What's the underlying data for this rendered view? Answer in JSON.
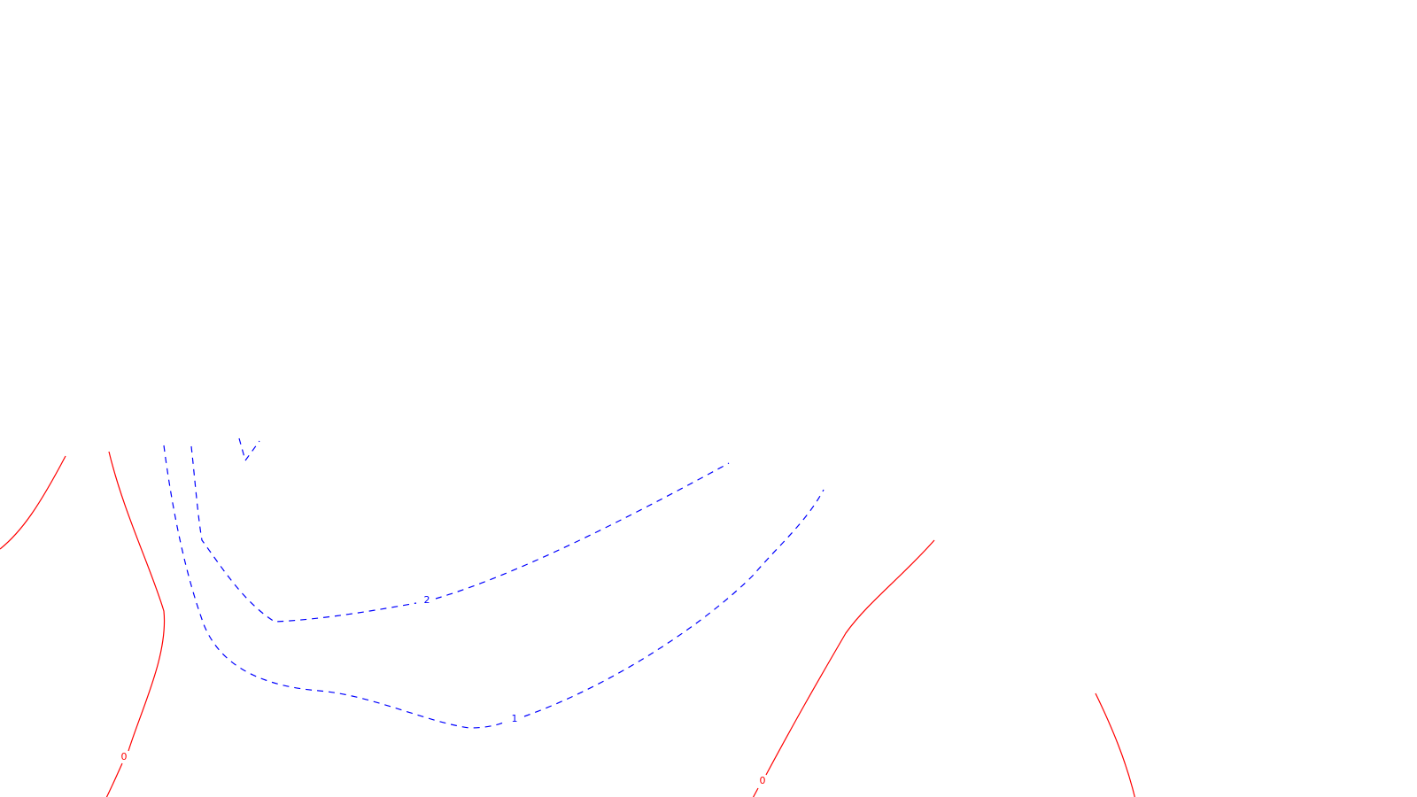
{
  "chart_data": {
    "type": "contour",
    "title": "",
    "xlabel": "",
    "ylabel": "",
    "grid": false,
    "levels": [
      {
        "value": 0,
        "label": "0",
        "color": "#ff0000",
        "style": "solid"
      },
      {
        "value": 1,
        "label": "1",
        "color": "#0000ff",
        "style": "dashed"
      },
      {
        "value": 2,
        "label": "2",
        "color": "#0000ff",
        "style": "dashed"
      }
    ]
  }
}
